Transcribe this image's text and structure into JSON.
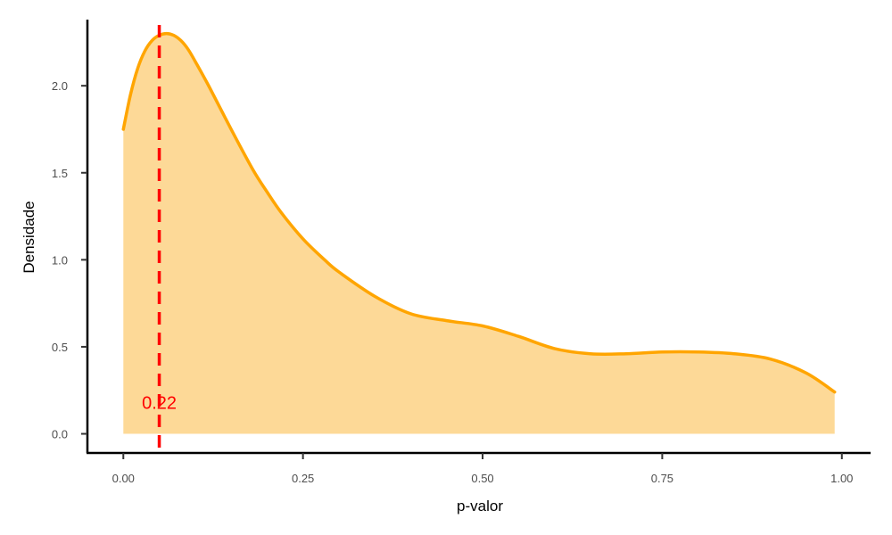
{
  "chart_data": {
    "type": "area",
    "xlabel": "p-valor",
    "ylabel": "Densidade",
    "xlim": [
      -0.05,
      1.04
    ],
    "ylim": [
      -0.11,
      2.38
    ],
    "x_ticks": [
      "0.00",
      "0.25",
      "0.50",
      "0.75",
      "1.00"
    ],
    "y_ticks": [
      "0.0",
      "0.5",
      "1.0",
      "1.5",
      "2.0"
    ],
    "grid": false,
    "series": [
      {
        "x": [
          0.0,
          0.01,
          0.02,
          0.03,
          0.04,
          0.05,
          0.06,
          0.07,
          0.08,
          0.09,
          0.1,
          0.12,
          0.15,
          0.18,
          0.2,
          0.22,
          0.25,
          0.28,
          0.3,
          0.35,
          0.4,
          0.45,
          0.5,
          0.55,
          0.6,
          0.65,
          0.7,
          0.75,
          0.8,
          0.85,
          0.9,
          0.95,
          0.99
        ],
        "y": [
          1.75,
          1.95,
          2.1,
          2.2,
          2.26,
          2.29,
          2.3,
          2.29,
          2.26,
          2.21,
          2.14,
          1.99,
          1.75,
          1.52,
          1.39,
          1.27,
          1.12,
          1.0,
          0.93,
          0.79,
          0.69,
          0.65,
          0.62,
          0.56,
          0.49,
          0.46,
          0.46,
          0.47,
          0.47,
          0.46,
          0.43,
          0.35,
          0.24
        ]
      }
    ],
    "line_color": "#FFA500",
    "fill_color": "#FDD997",
    "reference_line": {
      "x": 0.05,
      "color": "#FF0000",
      "style": "dashed"
    },
    "annotation": {
      "text": "0.22",
      "x": 0.05,
      "y": 0.18,
      "color": "#FF0000"
    }
  }
}
